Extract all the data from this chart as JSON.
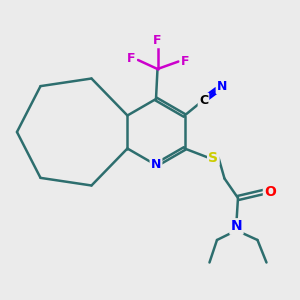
{
  "bg_color": "#ebebeb",
  "bond_color": "#2d6e6e",
  "N_color": "#0000ff",
  "S_color": "#cccc00",
  "O_color": "#ff0000",
  "F_color": "#cc00cc",
  "C_color": "#000000",
  "line_width": 1.8,
  "figsize": [
    3.0,
    3.0
  ],
  "dpi": 100,
  "xlim": [
    0,
    10
  ],
  "ylim": [
    0,
    10
  ]
}
